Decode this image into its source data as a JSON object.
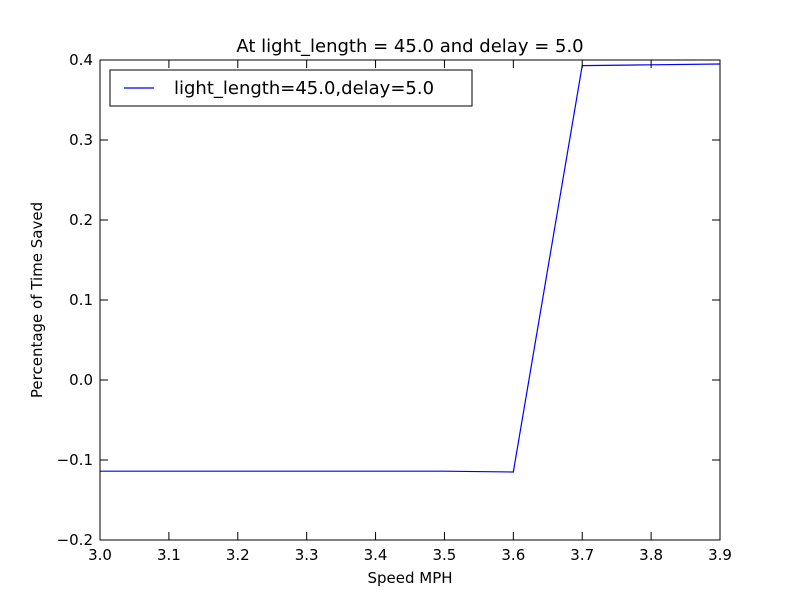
{
  "chart_data": {
    "type": "line",
    "title": "At light_length = 45.0 and delay = 5.0",
    "xlabel": "Speed MPH",
    "ylabel": "Percentage of Time Saved",
    "xlim": [
      3.0,
      3.9
    ],
    "ylim": [
      -0.2,
      0.4
    ],
    "xticks": [
      3.0,
      3.1,
      3.2,
      3.3,
      3.4,
      3.5,
      3.6,
      3.7,
      3.8,
      3.9
    ],
    "xtick_labels": [
      "3.0",
      "3.1",
      "3.2",
      "3.3",
      "3.4",
      "3.5",
      "3.6",
      "3.7",
      "3.8",
      "3.9"
    ],
    "yticks": [
      -0.2,
      -0.1,
      0.0,
      0.1,
      0.2,
      0.3,
      0.4
    ],
    "ytick_labels": [
      "−0.2",
      "−0.1",
      "0.0",
      "0.1",
      "0.2",
      "0.3",
      "0.4"
    ],
    "grid": false,
    "legend_position": "top-left",
    "series": [
      {
        "name": "light_length=45.0,delay=5.0",
        "color": "#0000ff",
        "x": [
          3.0,
          3.1,
          3.2,
          3.3,
          3.4,
          3.5,
          3.6,
          3.7,
          3.8,
          3.9
        ],
        "y": [
          -0.114,
          -0.114,
          -0.114,
          -0.114,
          -0.114,
          -0.114,
          -0.115,
          0.393,
          0.394,
          0.395
        ]
      }
    ]
  }
}
